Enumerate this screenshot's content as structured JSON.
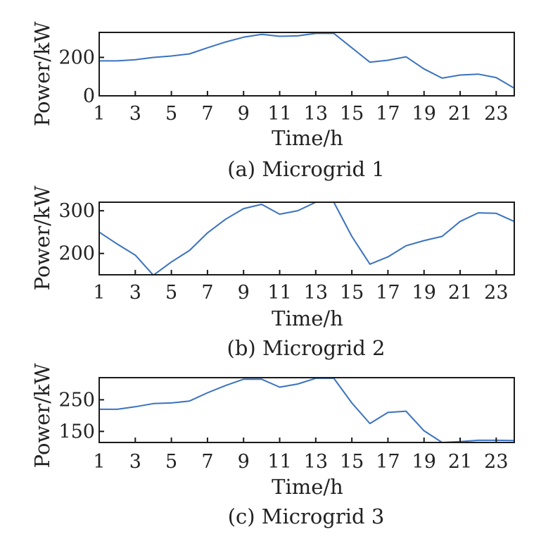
{
  "chart_data": [
    {
      "type": "line",
      "caption": "(a) Microgrid 1",
      "xlabel": "Time/h",
      "ylabel": "Power/kW",
      "x": [
        1,
        2,
        3,
        4,
        5,
        6,
        7,
        8,
        9,
        10,
        11,
        12,
        13,
        14,
        15,
        16,
        17,
        18,
        19,
        20,
        21,
        22,
        23,
        24
      ],
      "xticks": [
        1,
        3,
        5,
        7,
        9,
        11,
        13,
        15,
        17,
        19,
        21,
        23
      ],
      "xlim": [
        1,
        24
      ],
      "yticks": [
        0,
        200
      ],
      "ylim": [
        0,
        330
      ],
      "series": [
        {
          "values": [
            182,
            182,
            188,
            200,
            207,
            218,
            250,
            280,
            305,
            320,
            310,
            312,
            325,
            325,
            250,
            175,
            185,
            203,
            140,
            92,
            108,
            113,
            95,
            40
          ]
        }
      ]
    },
    {
      "type": "line",
      "caption": "(b) Microgrid 2",
      "xlabel": "Time/h",
      "ylabel": "Power/kW",
      "x": [
        1,
        2,
        3,
        4,
        5,
        6,
        7,
        8,
        9,
        10,
        11,
        12,
        13,
        14,
        15,
        16,
        17,
        18,
        19,
        20,
        21,
        22,
        23,
        24
      ],
      "xticks": [
        1,
        3,
        5,
        7,
        9,
        11,
        13,
        15,
        17,
        19,
        21,
        23
      ],
      "xlim": [
        1,
        24
      ],
      "yticks": [
        200,
        300
      ],
      "ylim": [
        150,
        320
      ],
      "series": [
        {
          "values": [
            250,
            222,
            196,
            149,
            180,
            207,
            248,
            280,
            305,
            315,
            292,
            300,
            320,
            320,
            240,
            175,
            192,
            218,
            230,
            240,
            275,
            295,
            294,
            275
          ]
        }
      ]
    },
    {
      "type": "line",
      "caption": "(c) Microgrid 3",
      "xlabel": "Time/h",
      "ylabel": "Power/kW",
      "x": [
        1,
        2,
        3,
        4,
        5,
        6,
        7,
        8,
        9,
        10,
        11,
        12,
        13,
        14,
        15,
        16,
        17,
        18,
        19,
        20,
        21,
        22,
        23,
        24
      ],
      "xticks": [
        1,
        3,
        5,
        7,
        9,
        11,
        13,
        15,
        17,
        19,
        21,
        23
      ],
      "xlim": [
        1,
        24
      ],
      "yticks": [
        150,
        250
      ],
      "ylim": [
        115,
        320
      ],
      "series": [
        {
          "values": [
            220,
            220,
            228,
            238,
            240,
            246,
            272,
            295,
            315,
            315,
            290,
            300,
            318,
            318,
            240,
            175,
            210,
            214,
            152,
            115,
            118,
            122,
            122,
            121
          ]
        }
      ]
    }
  ],
  "style": {
    "line_color": "#3a72c0"
  }
}
